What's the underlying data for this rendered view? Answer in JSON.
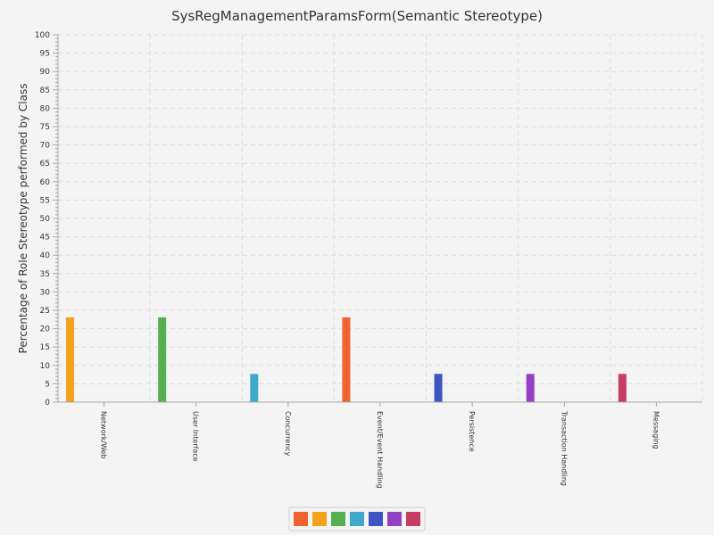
{
  "chart_data": {
    "type": "bar",
    "title": "SysRegManagementParamsForm(Semantic Stereotype)",
    "xlabel": "",
    "ylabel": "Percentage of Role Stereotype performed by Class",
    "ylim": [
      0,
      100
    ],
    "ytick_step": 5,
    "grid": true,
    "legend_position": "bottom",
    "categories": [
      "Network/Web",
      "User Interface",
      "Concurrency",
      "Event/Event Handling",
      "Persistence",
      "Transaction Handling",
      "Messaging"
    ],
    "series": [
      {
        "color": "#f0622f",
        "values": [
          0,
          0,
          0,
          23.08,
          0,
          0,
          0
        ]
      },
      {
        "color": "#f5a21b",
        "values": [
          23.08,
          0,
          0,
          0,
          0,
          0,
          0
        ]
      },
      {
        "color": "#55b04f",
        "values": [
          0,
          23.08,
          0,
          0,
          0,
          0,
          0
        ]
      },
      {
        "color": "#40a8c8",
        "values": [
          0,
          0,
          7.69,
          0,
          0,
          0,
          0
        ]
      },
      {
        "color": "#3c55c2",
        "values": [
          0,
          0,
          0,
          0,
          7.69,
          0,
          0
        ]
      },
      {
        "color": "#9440c4",
        "values": [
          0,
          0,
          0,
          0,
          0,
          7.69,
          0
        ]
      },
      {
        "color": "#c63c62",
        "values": [
          0,
          0,
          0,
          0,
          0,
          0,
          7.69
        ]
      }
    ]
  }
}
